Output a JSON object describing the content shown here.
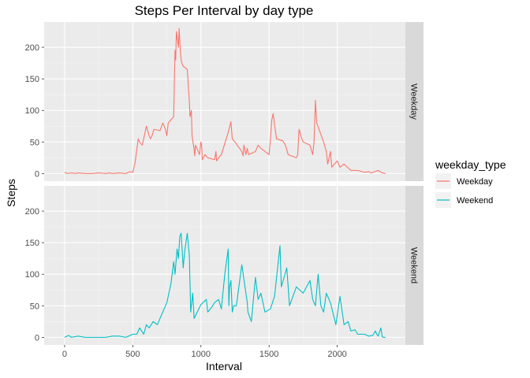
{
  "chart_data": {
    "type": "line",
    "title": "Steps Per Interval by day type",
    "xlabel": "Interval",
    "ylabel": "Steps",
    "xlim": [
      -150,
      2500
    ],
    "ylim": [
      -12,
      240
    ],
    "x_ticks": [
      0,
      500,
      1000,
      1500,
      2000
    ],
    "y_ticks": [
      0,
      50,
      100,
      150,
      200
    ],
    "grid": true,
    "facets": [
      "Weekday",
      "Weekend"
    ],
    "legend": {
      "title": "weekday_type",
      "position": "right"
    },
    "series": [
      {
        "name": "Weekday",
        "color": "#F8766D",
        "x": [
          0,
          20,
          50,
          80,
          100,
          150,
          200,
          250,
          300,
          330,
          350,
          400,
          450,
          480,
          500,
          515,
          525,
          540,
          550,
          570,
          600,
          620,
          630,
          645,
          655,
          700,
          720,
          740,
          750,
          760,
          800,
          810,
          815,
          820,
          835,
          840,
          845,
          850,
          855,
          860,
          870,
          900,
          915,
          920,
          930,
          935,
          950,
          955,
          960,
          990,
          1000,
          1005,
          1010,
          1030,
          1050,
          1100,
          1110,
          1115,
          1130,
          1150,
          1200,
          1220,
          1230,
          1250,
          1300,
          1310,
          1315,
          1330,
          1340,
          1350,
          1400,
          1420,
          1440,
          1500,
          1510,
          1520,
          1530,
          1545,
          1555,
          1600,
          1620,
          1640,
          1700,
          1710,
          1720,
          1740,
          1750,
          1800,
          1820,
          1830,
          1840,
          1850,
          1900,
          1920,
          1930,
          1940,
          1950,
          1960,
          2000,
          2020,
          2050,
          2100,
          2150,
          2200,
          2230,
          2250,
          2300,
          2330,
          2355
        ],
        "values": [
          2,
          0,
          1,
          0,
          1,
          0,
          0,
          1,
          0,
          1,
          0,
          1,
          0,
          3,
          2,
          15,
          30,
          55,
          50,
          45,
          75,
          60,
          55,
          62,
          70,
          68,
          80,
          70,
          60,
          80,
          90,
          195,
          180,
          225,
          200,
          230,
          210,
          190,
          180,
          175,
          170,
          165,
          115,
          90,
          100,
          60,
          38,
          28,
          45,
          30,
          50,
          45,
          22,
          30,
          25,
          22,
          35,
          20,
          25,
          30,
          65,
          82,
          55,
          50,
          35,
          28,
          45,
          30,
          40,
          30,
          35,
          45,
          40,
          30,
          55,
          85,
          95,
          70,
          55,
          52,
          45,
          30,
          25,
          30,
          70,
          55,
          50,
          45,
          30,
          50,
          116,
          80,
          50,
          35,
          15,
          25,
          35,
          10,
          20,
          10,
          15,
          5,
          5,
          2,
          3,
          1,
          5,
          1,
          0
        ]
      },
      {
        "name": "Weekend",
        "color": "#00BFC4",
        "x": [
          0,
          30,
          50,
          100,
          150,
          200,
          300,
          350,
          400,
          450,
          500,
          530,
          550,
          580,
          600,
          620,
          650,
          680,
          700,
          720,
          750,
          780,
          800,
          810,
          825,
          835,
          845,
          855,
          870,
          880,
          900,
          915,
          925,
          940,
          950,
          1000,
          1040,
          1050,
          1080,
          1100,
          1130,
          1150,
          1175,
          1200,
          1205,
          1210,
          1220,
          1230,
          1240,
          1260,
          1300,
          1340,
          1345,
          1370,
          1400,
          1420,
          1440,
          1470,
          1510,
          1540,
          1560,
          1580,
          1590,
          1630,
          1650,
          1700,
          1750,
          1800,
          1820,
          1840,
          1850,
          1860,
          1880,
          1900,
          1920,
          1950,
          1990,
          2000,
          2020,
          2050,
          2080,
          2100,
          2130,
          2150,
          2200,
          2230,
          2260,
          2280,
          2290,
          2300,
          2320,
          2330,
          2340,
          2355
        ],
        "values": [
          0,
          3,
          0,
          2,
          0,
          0,
          0,
          2,
          2,
          0,
          5,
          5,
          15,
          5,
          20,
          15,
          25,
          20,
          30,
          40,
          55,
          85,
          120,
          100,
          140,
          125,
          160,
          165,
          110,
          135,
          165,
          130,
          40,
          70,
          30,
          52,
          60,
          40,
          48,
          55,
          60,
          45,
          100,
          140,
          50,
          80,
          90,
          40,
          50,
          50,
          115,
          55,
          40,
          25,
          95,
          60,
          70,
          40,
          45,
          65,
          105,
          145,
          80,
          110,
          50,
          80,
          70,
          90,
          60,
          50,
          75,
          100,
          50,
          40,
          70,
          55,
          20,
          35,
          65,
          20,
          25,
          10,
          12,
          5,
          5,
          2,
          3,
          10,
          5,
          2,
          15,
          1,
          0,
          0
        ]
      }
    ]
  }
}
